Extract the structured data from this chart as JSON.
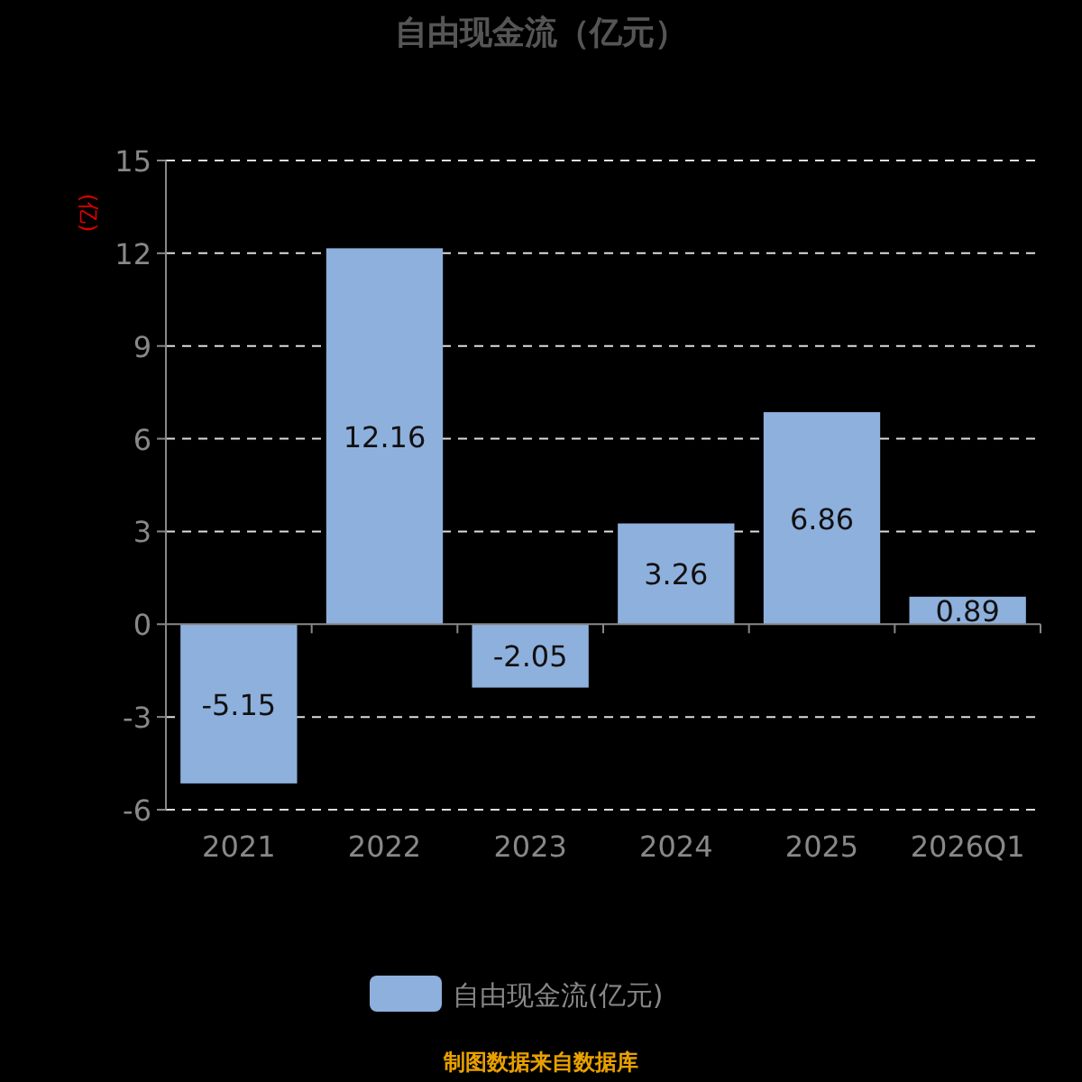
{
  "chart_data": {
    "type": "bar",
    "title": "自由现金流（亿元）",
    "ylabel": "(亿)",
    "categories": [
      "2021",
      "2022",
      "2023",
      "2024",
      "2025",
      "2026Q1"
    ],
    "series": [
      {
        "name": "自由现金流(亿元)",
        "color": "#8eb0dd",
        "values": [
          -5.15,
          12.16,
          -2.05,
          3.26,
          6.86,
          0.89
        ]
      }
    ],
    "ylim": [
      -6,
      15
    ],
    "yticks": [
      -6,
      -3,
      0,
      3,
      6,
      9,
      12,
      15
    ],
    "grid": "y",
    "legend": "bottom",
    "data_labels": true,
    "annotations": [
      "制图数据来自数据库"
    ]
  }
}
